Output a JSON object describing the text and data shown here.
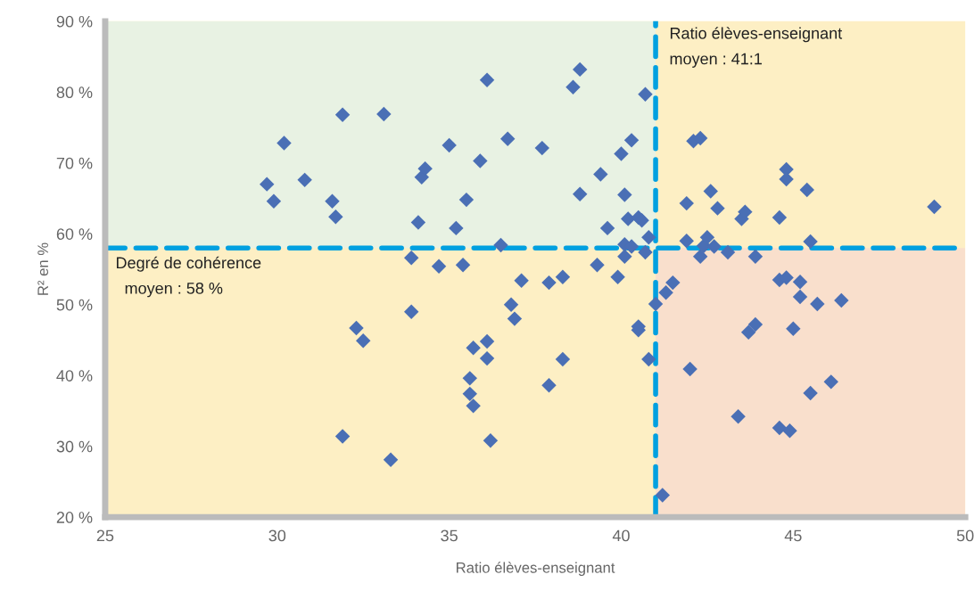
{
  "chart_data": {
    "type": "scatter",
    "xlabel": "Ratio élèves-enseignant",
    "ylabel": "R² en %",
    "xlim": [
      25,
      50
    ],
    "xticks": [
      25,
      30,
      35,
      40,
      45,
      50
    ],
    "ylim": [
      20,
      90
    ],
    "yticks": [
      {
        "value": 20,
        "label": "20 %"
      },
      {
        "value": 30,
        "label": "30 %"
      },
      {
        "value": 40,
        "label": "40 %"
      },
      {
        "value": 50,
        "label": "50 %"
      },
      {
        "value": 60,
        "label": "60 %"
      },
      {
        "value": 70,
        "label": "70 %"
      },
      {
        "value": 80,
        "label": "80 %"
      },
      {
        "value": 90,
        "label": "90 %"
      }
    ],
    "marker": "diamond",
    "grid": false,
    "legend": false,
    "series": [
      {
        "color": "#4a6fb5",
        "x": [
          29.7,
          29.9,
          30.2,
          30.8,
          31.6,
          31.7,
          31.9,
          31.9,
          32.3,
          32.5,
          33.1,
          33.3,
          33.9,
          33.9,
          34.1,
          34.2,
          34.3,
          34.7,
          35.0,
          35.2,
          35.4,
          35.5,
          35.6,
          35.6,
          35.7,
          35.7,
          35.9,
          36.1,
          36.1,
          36.1,
          36.2,
          36.5,
          36.7,
          36.8,
          36.9,
          37.1,
          37.7,
          37.9,
          37.9,
          38.3,
          38.3,
          38.6,
          38.8,
          38.8,
          39.3,
          39.4,
          39.6,
          39.9,
          40.0,
          40.1,
          40.1,
          40.1,
          40.3,
          40.2,
          40.3,
          40.5,
          40.5,
          40.5,
          40.6,
          40.7,
          40.7,
          40.8,
          40.8,
          41.0,
          41.2,
          41.3,
          41.5,
          41.9,
          41.9,
          42.0,
          42.1,
          42.3,
          42.3,
          42.4,
          42.5,
          42.6,
          42.7,
          42.8,
          43.1,
          43.4,
          43.5,
          43.6,
          43.7,
          43.9,
          43.9,
          44.6,
          44.6,
          44.6,
          44.8,
          44.8,
          44.8,
          44.9,
          45.0,
          45.2,
          45.2,
          45.4,
          45.5,
          45.5,
          45.7,
          46.1,
          46.4,
          49.1
        ],
        "values": [
          67.0,
          64.6,
          72.8,
          67.6,
          64.6,
          62.4,
          76.8,
          31.4,
          46.7,
          44.9,
          76.9,
          28.1,
          56.6,
          49.0,
          61.6,
          68.0,
          69.2,
          55.4,
          72.5,
          60.8,
          55.6,
          64.8,
          39.6,
          37.4,
          35.7,
          43.9,
          70.3,
          81.7,
          44.8,
          42.4,
          30.8,
          58.4,
          73.4,
          50.0,
          48.0,
          53.4,
          72.1,
          38.6,
          53.1,
          53.9,
          42.3,
          80.7,
          83.2,
          65.6,
          55.6,
          68.4,
          60.8,
          53.9,
          71.3,
          58.5,
          65.5,
          56.8,
          73.2,
          62.1,
          58.2,
          62.3,
          46.4,
          46.9,
          61.9,
          79.7,
          57.4,
          59.5,
          42.3,
          50.1,
          23.1,
          51.7,
          53.1,
          64.3,
          59.0,
          40.9,
          73.1,
          73.5,
          56.8,
          58.3,
          59.5,
          66.0,
          58.2,
          63.6,
          57.4,
          34.2,
          62.1,
          63.1,
          46.1,
          47.2,
          56.8,
          62.3,
          53.5,
          32.6,
          69.1,
          53.8,
          67.7,
          32.2,
          46.6,
          53.2,
          51.1,
          66.2,
          58.9,
          37.5,
          50.1,
          39.1,
          50.6,
          63.8
        ]
      }
    ],
    "ref_lines": [
      {
        "axis": "x",
        "value": 41,
        "label": "Ratio élèves-enseignant\nmoyen : 41:1",
        "color": "#00a0e0",
        "line_style": "dashed"
      },
      {
        "axis": "y",
        "value": 58,
        "label": "Degré de cohérence\n  moyen : 58 %",
        "color": "#00a0e0",
        "line_style": "dashed"
      }
    ]
  }
}
